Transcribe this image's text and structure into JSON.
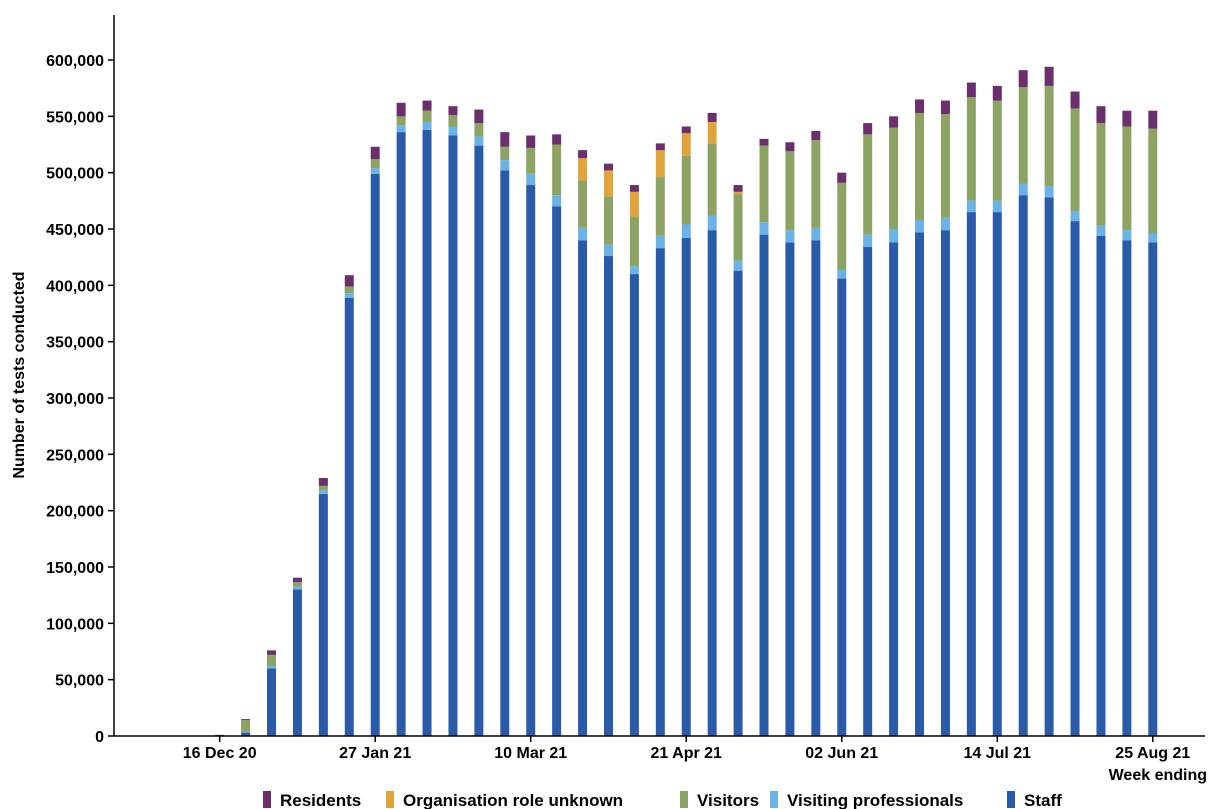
{
  "chart_data": {
    "type": "bar",
    "stacked": true,
    "ylabel": "Number of tests conducted",
    "xlabel": "Week ending",
    "ylim": [
      0,
      600000
    ],
    "yticks": [
      0,
      50000,
      100000,
      150000,
      200000,
      250000,
      300000,
      350000,
      400000,
      450000,
      500000,
      550000,
      600000
    ],
    "ytick_labels": [
      "0",
      "50,000",
      "100,000",
      "150,000",
      "200,000",
      "250,000",
      "300,000",
      "350,000",
      "400,000",
      "450,000",
      "500,000",
      "550,000",
      "600,000"
    ],
    "categories": [
      "18 Nov 20",
      "25 Nov 20",
      "02 Dec 20",
      "09 Dec 20",
      "16 Dec 20",
      "23 Dec 20",
      "30 Dec 20",
      "06 Jan 21",
      "13 Jan 21",
      "20 Jan 21",
      "27 Jan 21",
      "03 Feb 21",
      "10 Feb 21",
      "17 Feb 21",
      "24 Feb 21",
      "03 Mar 21",
      "10 Mar 21",
      "17 Mar 21",
      "24 Mar 21",
      "31 Mar 21",
      "07 Apr 21",
      "14 Apr 21",
      "21 Apr 21",
      "28 Apr 21",
      "05 May 21",
      "12 May 21",
      "19 May 21",
      "26 May 21",
      "02 Jun 21",
      "09 Jun 21",
      "16 Jun 21",
      "23 Jun 21",
      "30 Jun 21",
      "07 Jul 21",
      "14 Jul 21",
      "21 Jul 21",
      "28 Jul 21",
      "04 Aug 21",
      "11 Aug 21",
      "18 Aug 21",
      "25 Aug 21"
    ],
    "xtick_labels": [
      {
        "index": 4,
        "label": "16 Dec 20"
      },
      {
        "index": 10,
        "label": "27 Jan 21"
      },
      {
        "index": 16,
        "label": "10 Mar 21"
      },
      {
        "index": 22,
        "label": "21 Apr 21"
      },
      {
        "index": 28,
        "label": "02 Jun 21"
      },
      {
        "index": 34,
        "label": "14 Jul 21"
      },
      {
        "index": 40,
        "label": "25 Aug 21"
      }
    ],
    "legend_position": "bottom",
    "series": [
      {
        "name": "Staff",
        "color": "#2a5ba8",
        "values": [
          0,
          0,
          0,
          0,
          0,
          3000,
          60000,
          130000,
          215000,
          389000,
          499000,
          536000,
          538000,
          533000,
          524000,
          502000,
          489000,
          470000,
          440000,
          426000,
          410000,
          433000,
          442000,
          449000,
          413000,
          445000,
          438000,
          440000,
          406000,
          434000,
          438000,
          447000,
          449000,
          465000,
          465000,
          480000,
          478000,
          457000,
          444000,
          440000,
          438000
        ]
      },
      {
        "name": "Visiting professionals",
        "color": "#6bb3e6",
        "values": [
          0,
          0,
          0,
          0,
          0,
          1000,
          2000,
          2500,
          3000,
          4000,
          5000,
          6000,
          7000,
          8000,
          8000,
          9000,
          10000,
          10000,
          11000,
          10000,
          7000,
          11000,
          12000,
          13000,
          9000,
          11000,
          11000,
          11000,
          8000,
          11000,
          12000,
          11000,
          11000,
          10000,
          10000,
          10000,
          10000,
          9000,
          9000,
          9000,
          8000
        ]
      },
      {
        "name": "Visitors",
        "color": "#8ca363",
        "values": [
          0,
          0,
          0,
          0,
          0,
          10000,
          10000,
          4000,
          4000,
          6000,
          8000,
          8000,
          10000,
          10000,
          12000,
          12000,
          23000,
          45000,
          42000,
          43000,
          44000,
          52000,
          61000,
          64000,
          59000,
          68000,
          70000,
          78000,
          77000,
          89000,
          90000,
          95000,
          92000,
          92000,
          89000,
          86000,
          89000,
          91000,
          91000,
          92000,
          93000
        ]
      },
      {
        "name": "Organisation role unknown",
        "color": "#e0a43d",
        "values": [
          0,
          0,
          0,
          0,
          0,
          0,
          0,
          0,
          0,
          0,
          0,
          0,
          0,
          0,
          0,
          0,
          0,
          0,
          20000,
          23000,
          22000,
          24000,
          20000,
          19000,
          2000,
          0,
          0,
          0,
          0,
          0,
          0,
          0,
          0,
          0,
          0,
          0,
          0,
          0,
          0,
          0,
          0
        ]
      },
      {
        "name": "Residents",
        "color": "#6a2f6c",
        "values": [
          0,
          0,
          0,
          0,
          1000,
          1000,
          4000,
          4000,
          7000,
          10000,
          11000,
          12000,
          9000,
          8000,
          12000,
          13000,
          11000,
          9000,
          7000,
          6000,
          6000,
          6000,
          6000,
          8000,
          6000,
          6000,
          8000,
          8000,
          9000,
          10000,
          10000,
          12000,
          12000,
          13000,
          13000,
          15000,
          17000,
          15000,
          15000,
          14000,
          16000
        ]
      }
    ],
    "legend_order": [
      "Residents",
      "Organisation role unknown",
      "Visitors",
      "Visiting professionals",
      "Staff"
    ]
  }
}
